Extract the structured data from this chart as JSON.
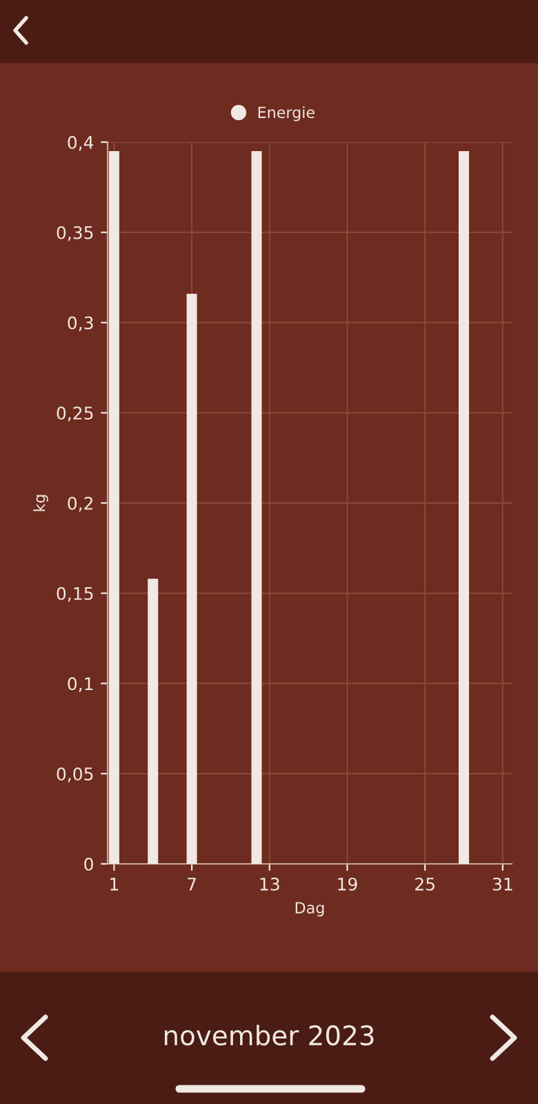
{
  "chart_data": {
    "type": "bar",
    "x": [
      1,
      4,
      7,
      12,
      28
    ],
    "series": [
      {
        "name": "Energie",
        "color": "#f0e8e2",
        "values": [
          0.395,
          0.158,
          0.316,
          0.395,
          0.395
        ]
      }
    ],
    "xlabel": "Dag",
    "ylabel": "kg",
    "xlim": [
      0.5,
      31.7
    ],
    "xticks": [
      1,
      7,
      13,
      19,
      25,
      31
    ],
    "ylim": [
      0,
      0.4
    ],
    "yticks": [
      0,
      {
        "value": 0.05,
        "label": "0,05"
      },
      {
        "value": 0.1,
        "label": "0,1"
      },
      {
        "value": 0.15,
        "label": "0,15"
      },
      {
        "value": 0.2,
        "label": "0,2"
      },
      {
        "value": 0.25,
        "label": "0,25"
      },
      {
        "value": 0.3,
        "label": "0,3"
      },
      {
        "value": 0.35,
        "label": "0,35"
      },
      {
        "value": 0.4,
        "label": "0,4"
      }
    ],
    "grid": true,
    "legend": "top",
    "annotations": [
      "november 2023"
    ]
  }
}
